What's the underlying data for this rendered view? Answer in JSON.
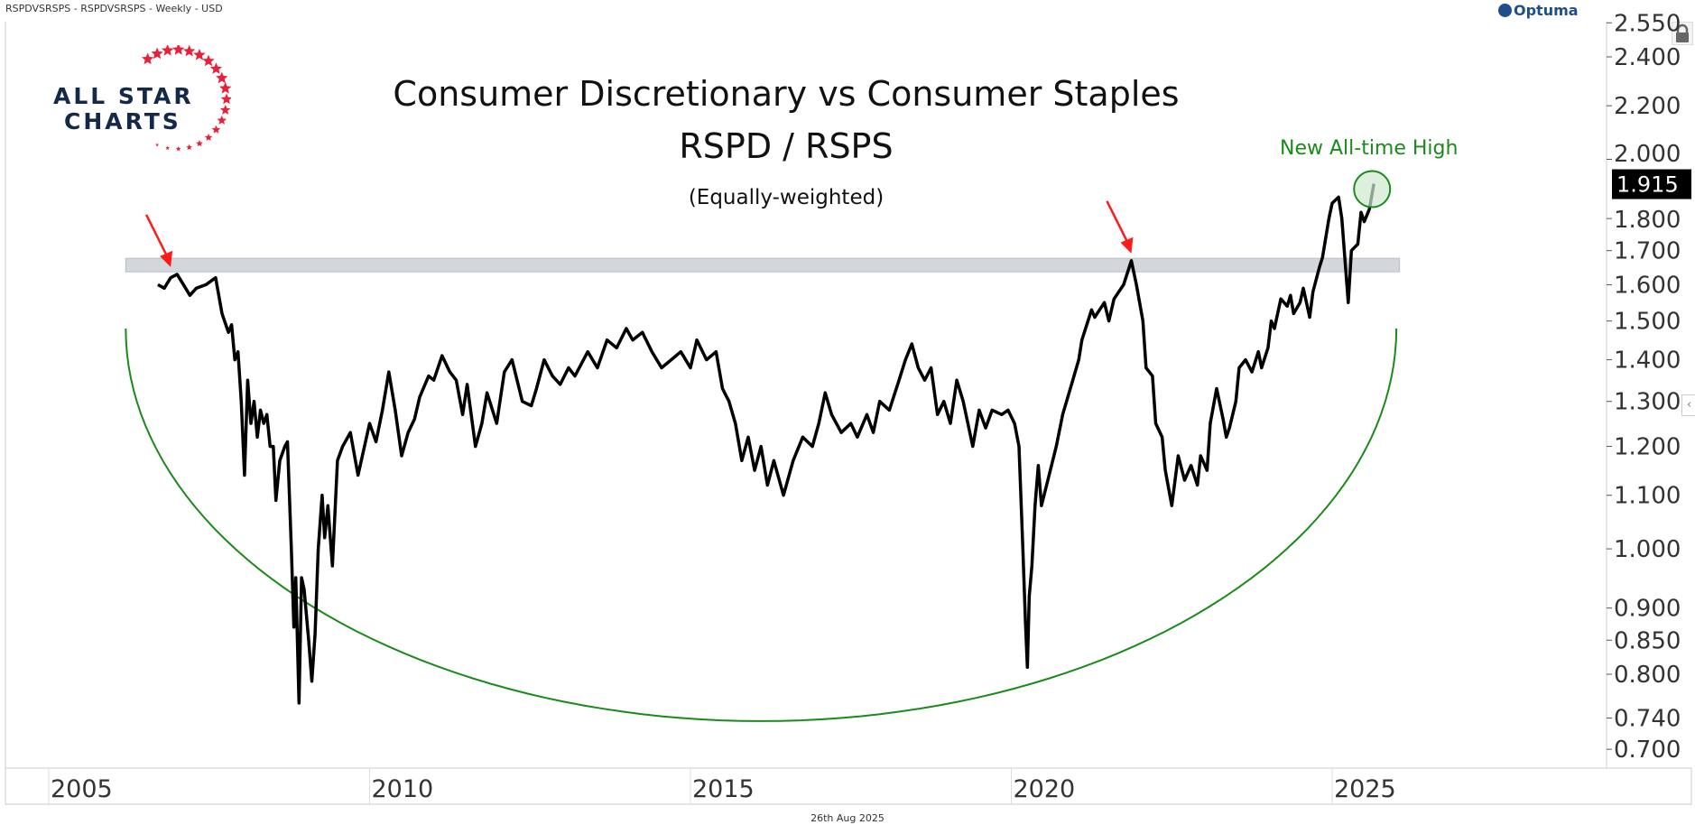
{
  "header": {
    "instrument": "RSPDVSRSPS - RSPDVSRSPS - Weekly - USD",
    "brand": "Optuma"
  },
  "logo": {
    "line1": "ALL STAR",
    "line2": "CHARTS"
  },
  "footer": {
    "date": "26th Aug 2025"
  },
  "colors": {
    "series": "#000000",
    "arc": "#1a8a1a",
    "arrow": "#ff1a1a",
    "band": "#c8cdd3",
    "highlight_fill": "#cfe8cf",
    "last_value_bg": "#000000"
  },
  "icons": {
    "lock": "lock-icon",
    "collapse": "chevron-left-icon"
  },
  "chart_data": {
    "type": "line",
    "title": "Consumer Discretionary vs Consumer Staples",
    "subtitle": "RSPD / RSPS",
    "subtitle2": "(Equally-weighted)",
    "y_scale": "log",
    "ylim": [
      0.677,
      2.555
    ],
    "xlim": [
      2004.3,
      2029.2
    ],
    "grid": false,
    "y_ticks": [
      "2.550",
      "2.400",
      "2.200",
      "2.000",
      "1.800",
      "1.700",
      "1.600",
      "1.500",
      "1.400",
      "1.300",
      "1.200",
      "1.100",
      "1.000",
      "0.900",
      "0.850",
      "0.800",
      "0.740",
      "0.700"
    ],
    "x_ticks": [
      "2005",
      "2010",
      "2015",
      "2020",
      "2025"
    ],
    "last_value": "1.915",
    "annotations": {
      "ath_label": "New All-time High",
      "ath_point": [
        2025.65,
        1.915
      ],
      "resistance_band": {
        "x": [
          2006.2,
          2026.05
        ],
        "y": [
          1.637,
          1.677
        ]
      },
      "arrows_at": [
        [
          2006.9,
          1.63
        ],
        [
          2021.87,
          1.67
        ]
      ],
      "arc": {
        "left": [
          2006.2,
          1.48
        ],
        "bottom": [
          2016.1,
          0.736
        ],
        "right": [
          2026.0,
          1.48
        ]
      }
    },
    "series": [
      {
        "points": [
          [
            2006.7,
            1.6
          ],
          [
            2006.8,
            1.59
          ],
          [
            2006.9,
            1.62
          ],
          [
            2007.0,
            1.63
          ],
          [
            2007.1,
            1.6
          ],
          [
            2007.2,
            1.57
          ],
          [
            2007.3,
            1.59
          ],
          [
            2007.45,
            1.6
          ],
          [
            2007.6,
            1.62
          ],
          [
            2007.7,
            1.52
          ],
          [
            2007.8,
            1.47
          ],
          [
            2007.85,
            1.49
          ],
          [
            2007.9,
            1.4
          ],
          [
            2007.95,
            1.42
          ],
          [
            2008.0,
            1.3
          ],
          [
            2008.05,
            1.14
          ],
          [
            2008.1,
            1.35
          ],
          [
            2008.15,
            1.25
          ],
          [
            2008.2,
            1.3
          ],
          [
            2008.25,
            1.22
          ],
          [
            2008.3,
            1.28
          ],
          [
            2008.35,
            1.25
          ],
          [
            2008.4,
            1.27
          ],
          [
            2008.45,
            1.2
          ],
          [
            2008.5,
            1.2
          ],
          [
            2008.54,
            1.09
          ],
          [
            2008.6,
            1.17
          ],
          [
            2008.68,
            1.2
          ],
          [
            2008.72,
            1.21
          ],
          [
            2008.78,
            1.0
          ],
          [
            2008.82,
            0.87
          ],
          [
            2008.85,
            0.95
          ],
          [
            2008.9,
            0.76
          ],
          [
            2008.94,
            0.95
          ],
          [
            2008.98,
            0.93
          ],
          [
            2009.05,
            0.85
          ],
          [
            2009.1,
            0.79
          ],
          [
            2009.15,
            0.86
          ],
          [
            2009.2,
            1.0
          ],
          [
            2009.26,
            1.1
          ],
          [
            2009.3,
            1.02
          ],
          [
            2009.35,
            1.08
          ],
          [
            2009.42,
            0.97
          ],
          [
            2009.5,
            1.17
          ],
          [
            2009.58,
            1.2
          ],
          [
            2009.7,
            1.23
          ],
          [
            2009.82,
            1.14
          ],
          [
            2010.0,
            1.25
          ],
          [
            2010.1,
            1.21
          ],
          [
            2010.2,
            1.28
          ],
          [
            2010.3,
            1.37
          ],
          [
            2010.4,
            1.28
          ],
          [
            2010.5,
            1.18
          ],
          [
            2010.6,
            1.23
          ],
          [
            2010.7,
            1.26
          ],
          [
            2010.78,
            1.31
          ],
          [
            2010.92,
            1.36
          ],
          [
            2011.0,
            1.35
          ],
          [
            2011.13,
            1.41
          ],
          [
            2011.25,
            1.37
          ],
          [
            2011.35,
            1.35
          ],
          [
            2011.45,
            1.27
          ],
          [
            2011.52,
            1.34
          ],
          [
            2011.65,
            1.2
          ],
          [
            2011.75,
            1.25
          ],
          [
            2011.83,
            1.32
          ],
          [
            2011.98,
            1.25
          ],
          [
            2012.1,
            1.37
          ],
          [
            2012.22,
            1.4
          ],
          [
            2012.38,
            1.3
          ],
          [
            2012.52,
            1.29
          ],
          [
            2012.6,
            1.33
          ],
          [
            2012.72,
            1.4
          ],
          [
            2012.85,
            1.36
          ],
          [
            2012.97,
            1.34
          ],
          [
            2013.1,
            1.38
          ],
          [
            2013.2,
            1.36
          ],
          [
            2013.4,
            1.42
          ],
          [
            2013.55,
            1.38
          ],
          [
            2013.7,
            1.45
          ],
          [
            2013.85,
            1.43
          ],
          [
            2014.0,
            1.48
          ],
          [
            2014.1,
            1.45
          ],
          [
            2014.25,
            1.47
          ],
          [
            2014.4,
            1.42
          ],
          [
            2014.55,
            1.38
          ],
          [
            2014.7,
            1.4
          ],
          [
            2014.85,
            1.42
          ],
          [
            2015.0,
            1.38
          ],
          [
            2015.1,
            1.45
          ],
          [
            2015.25,
            1.4
          ],
          [
            2015.4,
            1.42
          ],
          [
            2015.5,
            1.33
          ],
          [
            2015.6,
            1.3
          ],
          [
            2015.7,
            1.25
          ],
          [
            2015.8,
            1.17
          ],
          [
            2015.9,
            1.22
          ],
          [
            2016.0,
            1.15
          ],
          [
            2016.1,
            1.2
          ],
          [
            2016.2,
            1.12
          ],
          [
            2016.3,
            1.17
          ],
          [
            2016.45,
            1.1
          ],
          [
            2016.6,
            1.17
          ],
          [
            2016.75,
            1.22
          ],
          [
            2016.9,
            1.2
          ],
          [
            2017.0,
            1.25
          ],
          [
            2017.1,
            1.32
          ],
          [
            2017.2,
            1.27
          ],
          [
            2017.35,
            1.23
          ],
          [
            2017.5,
            1.25
          ],
          [
            2017.6,
            1.22
          ],
          [
            2017.75,
            1.27
          ],
          [
            2017.85,
            1.23
          ],
          [
            2017.95,
            1.3
          ],
          [
            2018.1,
            1.28
          ],
          [
            2018.25,
            1.35
          ],
          [
            2018.35,
            1.4
          ],
          [
            2018.45,
            1.44
          ],
          [
            2018.55,
            1.38
          ],
          [
            2018.65,
            1.35
          ],
          [
            2018.75,
            1.38
          ],
          [
            2018.85,
            1.27
          ],
          [
            2018.95,
            1.3
          ],
          [
            2019.05,
            1.25
          ],
          [
            2019.15,
            1.35
          ],
          [
            2019.25,
            1.3
          ],
          [
            2019.4,
            1.2
          ],
          [
            2019.5,
            1.28
          ],
          [
            2019.6,
            1.24
          ],
          [
            2019.7,
            1.28
          ],
          [
            2019.85,
            1.27
          ],
          [
            2019.95,
            1.28
          ],
          [
            2020.05,
            1.25
          ],
          [
            2020.12,
            1.2
          ],
          [
            2020.18,
            1.0
          ],
          [
            2020.22,
            0.88
          ],
          [
            2020.25,
            0.81
          ],
          [
            2020.28,
            0.92
          ],
          [
            2020.32,
            0.97
          ],
          [
            2020.37,
            1.08
          ],
          [
            2020.42,
            1.16
          ],
          [
            2020.47,
            1.08
          ],
          [
            2020.55,
            1.12
          ],
          [
            2020.7,
            1.2
          ],
          [
            2020.8,
            1.27
          ],
          [
            2020.9,
            1.32
          ],
          [
            2021.05,
            1.4
          ],
          [
            2021.1,
            1.45
          ],
          [
            2021.25,
            1.53
          ],
          [
            2021.3,
            1.51
          ],
          [
            2021.45,
            1.55
          ],
          [
            2021.52,
            1.5
          ],
          [
            2021.6,
            1.56
          ],
          [
            2021.75,
            1.6
          ],
          [
            2021.87,
            1.67
          ],
          [
            2021.95,
            1.6
          ],
          [
            2022.05,
            1.5
          ],
          [
            2022.1,
            1.38
          ],
          [
            2022.2,
            1.36
          ],
          [
            2022.25,
            1.25
          ],
          [
            2022.35,
            1.22
          ],
          [
            2022.4,
            1.15
          ],
          [
            2022.5,
            1.08
          ],
          [
            2022.6,
            1.18
          ],
          [
            2022.7,
            1.13
          ],
          [
            2022.8,
            1.16
          ],
          [
            2022.9,
            1.12
          ],
          [
            2022.95,
            1.18
          ],
          [
            2023.05,
            1.15
          ],
          [
            2023.1,
            1.25
          ],
          [
            2023.2,
            1.33
          ],
          [
            2023.3,
            1.26
          ],
          [
            2023.35,
            1.22
          ],
          [
            2023.4,
            1.24
          ],
          [
            2023.5,
            1.3
          ],
          [
            2023.55,
            1.38
          ],
          [
            2023.65,
            1.4
          ],
          [
            2023.75,
            1.37
          ],
          [
            2023.85,
            1.42
          ],
          [
            2023.9,
            1.38
          ],
          [
            2024.0,
            1.43
          ],
          [
            2024.05,
            1.5
          ],
          [
            2024.1,
            1.48
          ],
          [
            2024.2,
            1.56
          ],
          [
            2024.3,
            1.54
          ],
          [
            2024.35,
            1.57
          ],
          [
            2024.4,
            1.52
          ],
          [
            2024.5,
            1.55
          ],
          [
            2024.55,
            1.59
          ],
          [
            2024.65,
            1.51
          ],
          [
            2024.7,
            1.58
          ],
          [
            2024.8,
            1.65
          ],
          [
            2024.85,
            1.68
          ],
          [
            2024.95,
            1.8
          ],
          [
            2025.0,
            1.85
          ],
          [
            2025.1,
            1.87
          ],
          [
            2025.15,
            1.8
          ],
          [
            2025.25,
            1.55
          ],
          [
            2025.3,
            1.7
          ],
          [
            2025.4,
            1.72
          ],
          [
            2025.45,
            1.82
          ],
          [
            2025.5,
            1.79
          ],
          [
            2025.58,
            1.83
          ],
          [
            2025.65,
            1.915
          ]
        ]
      }
    ]
  }
}
